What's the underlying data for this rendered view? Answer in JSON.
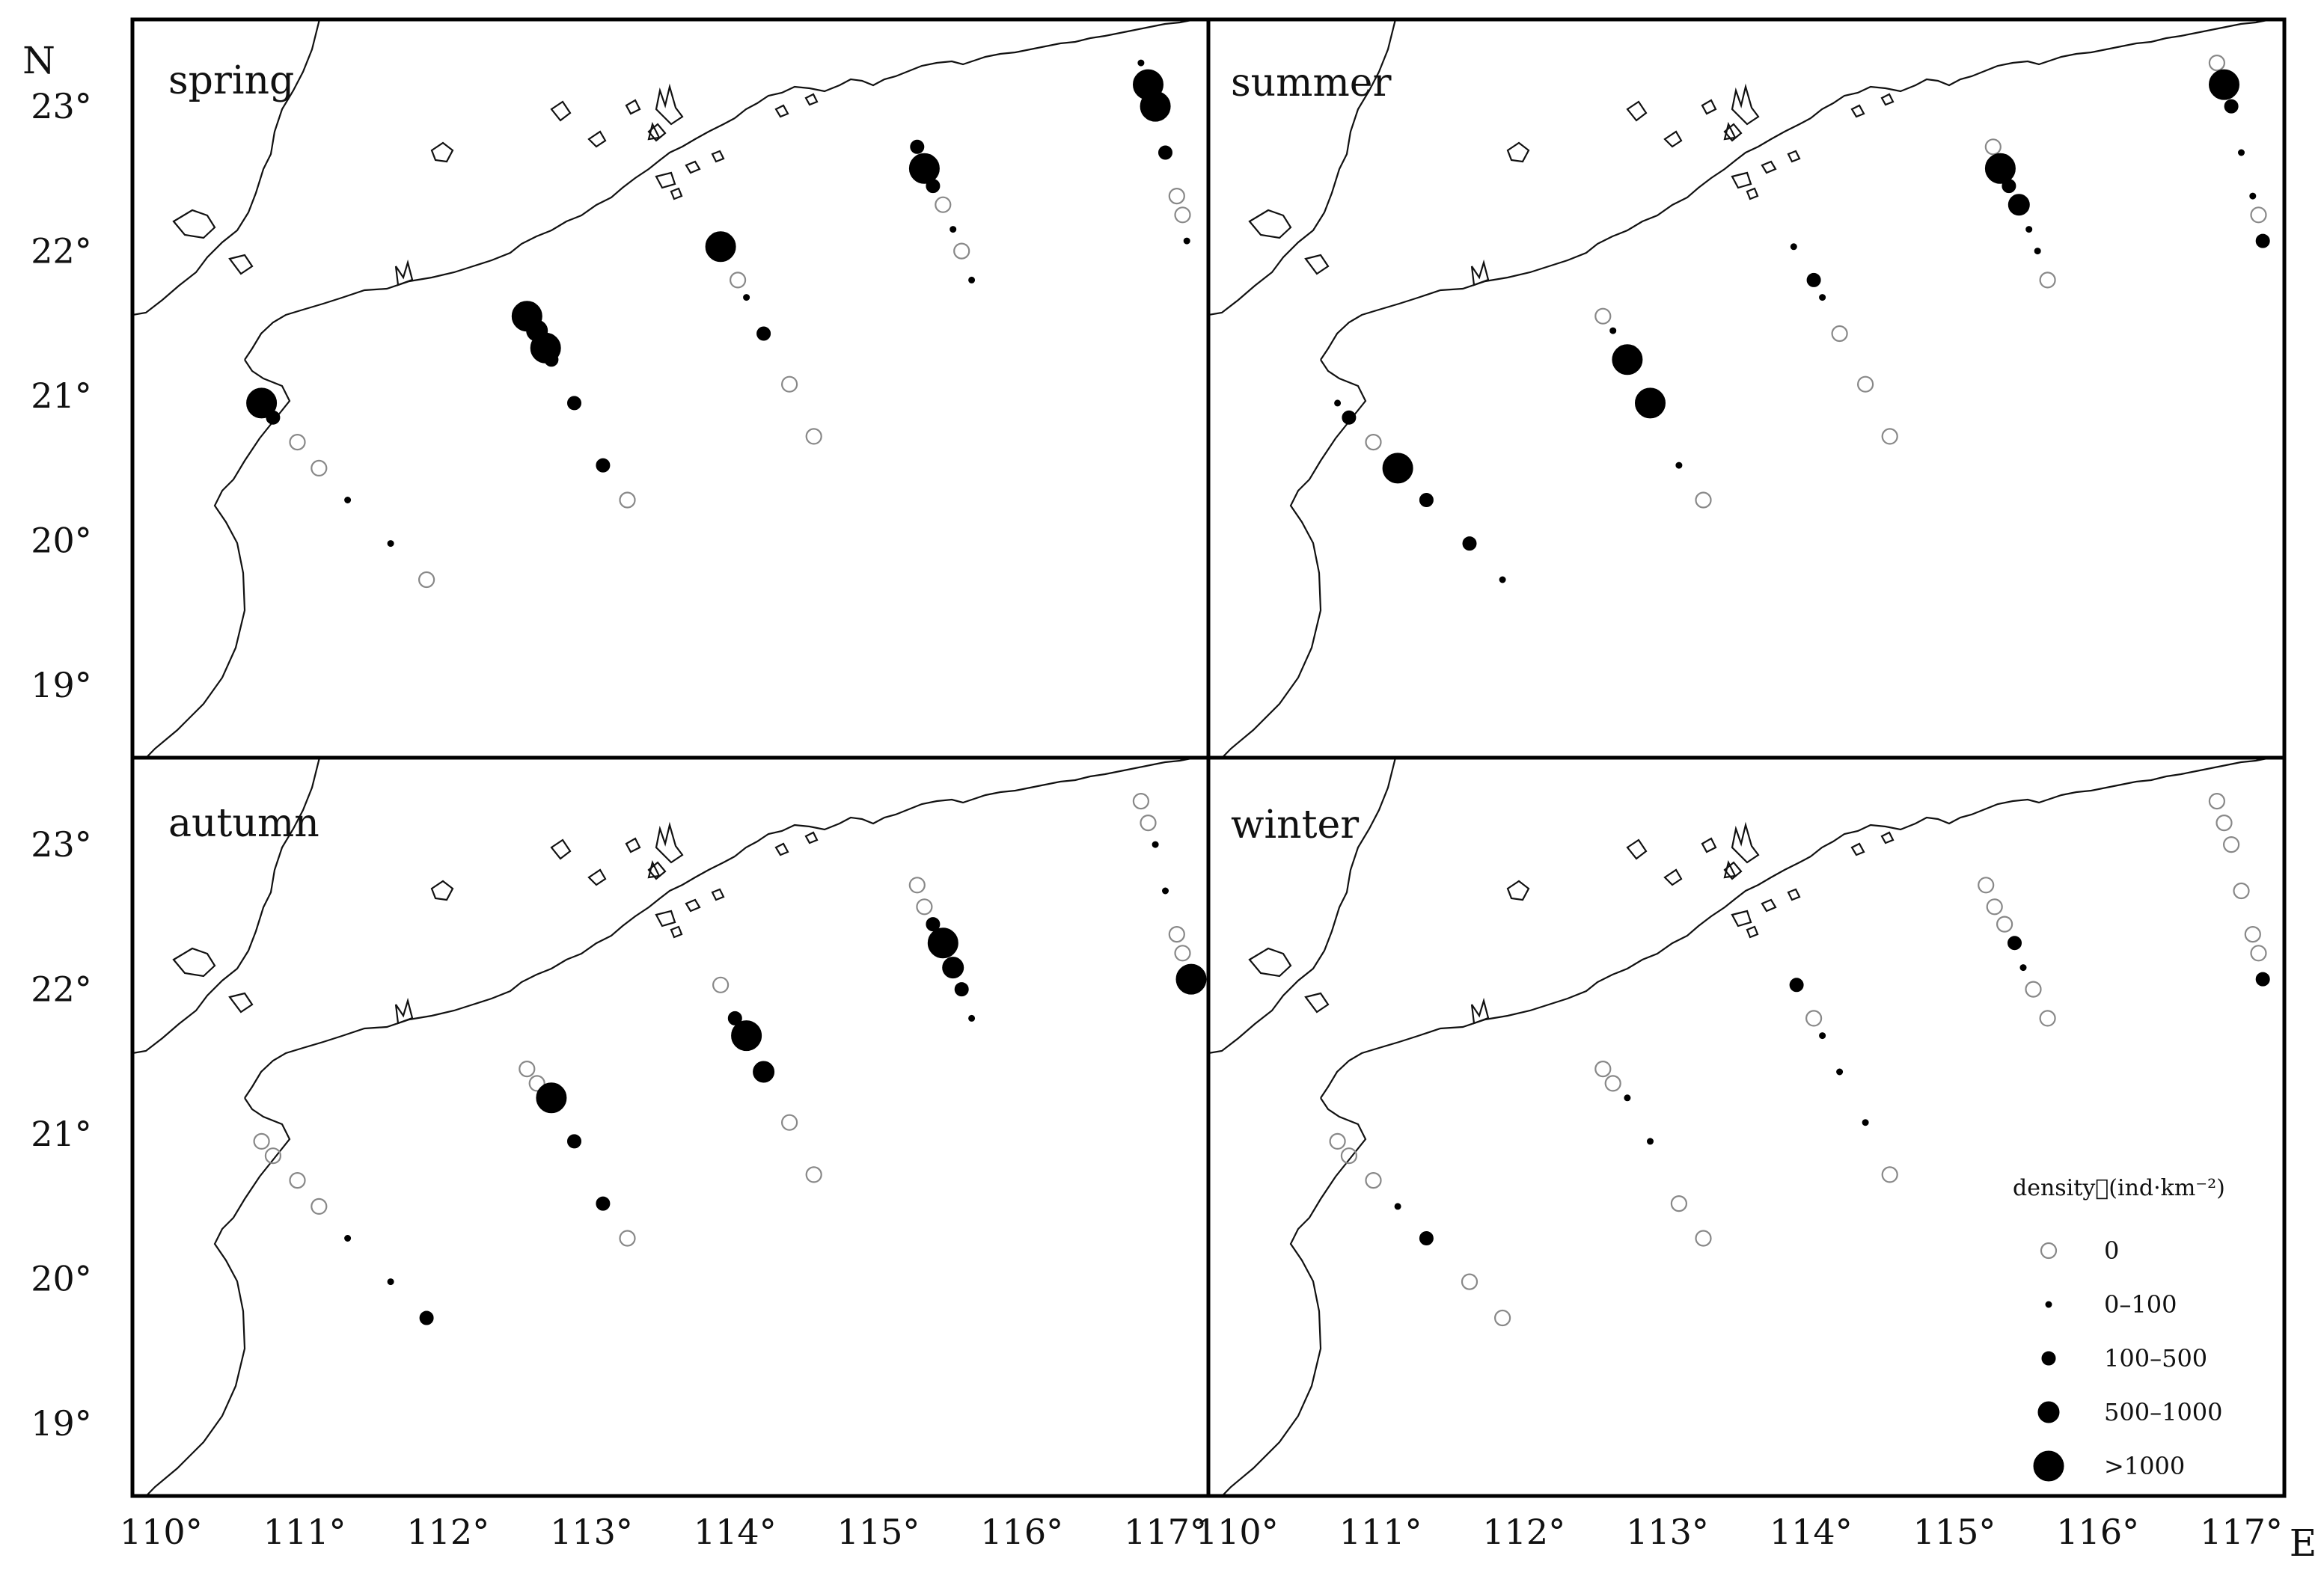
{
  "axes": {
    "x_letter": "E",
    "y_letter": "N",
    "lon_ticks": [
      "110°",
      "111°",
      "112°",
      "113°",
      "114°",
      "115°",
      "116°",
      "117°"
    ],
    "lat_ticks": [
      "23°",
      "22°",
      "21°",
      "20°",
      "19°"
    ],
    "lon_range": [
      109.8,
      117.3
    ],
    "lat_range": [
      18.5,
      23.6
    ]
  },
  "legend": {
    "title": "density\u0000(ind·km⁻²)",
    "classes": [
      {
        "label": "0",
        "symbol": "open-circle"
      },
      {
        "label": "0–100",
        "symbol": "tiny-dot"
      },
      {
        "label": "100–500",
        "symbol": "small-dot"
      },
      {
        "label": "500–1000",
        "symbol": "medium-dot"
      },
      {
        "label": ">1000",
        "symbol": "large-dot"
      }
    ]
  },
  "chart_data": {
    "type": "scatter",
    "value_classes": [
      "0",
      "0-100",
      "100-500",
      "500-1000",
      ">1000"
    ],
    "panels": [
      {
        "season": "spring",
        "points": [
          {
            "lon": 110.7,
            "lat": 20.95,
            "cls": 4
          },
          {
            "lon": 110.78,
            "lat": 20.85,
            "cls": 2
          },
          {
            "lon": 110.95,
            "lat": 20.68,
            "cls": 0
          },
          {
            "lon": 111.1,
            "lat": 20.5,
            "cls": 0
          },
          {
            "lon": 111.3,
            "lat": 20.28,
            "cls": 1
          },
          {
            "lon": 111.6,
            "lat": 19.98,
            "cls": 1
          },
          {
            "lon": 111.85,
            "lat": 19.73,
            "cls": 0
          },
          {
            "lon": 112.55,
            "lat": 21.55,
            "cls": 4
          },
          {
            "lon": 112.62,
            "lat": 21.45,
            "cls": 3
          },
          {
            "lon": 112.68,
            "lat": 21.33,
            "cls": 4
          },
          {
            "lon": 112.72,
            "lat": 21.25,
            "cls": 2
          },
          {
            "lon": 112.88,
            "lat": 20.95,
            "cls": 2
          },
          {
            "lon": 113.08,
            "lat": 20.52,
            "cls": 2
          },
          {
            "lon": 113.25,
            "lat": 20.28,
            "cls": 0
          },
          {
            "lon": 113.9,
            "lat": 22.03,
            "cls": 4
          },
          {
            "lon": 114.02,
            "lat": 21.8,
            "cls": 0
          },
          {
            "lon": 114.08,
            "lat": 21.68,
            "cls": 1
          },
          {
            "lon": 114.2,
            "lat": 21.43,
            "cls": 2
          },
          {
            "lon": 114.38,
            "lat": 21.08,
            "cls": 0
          },
          {
            "lon": 114.55,
            "lat": 20.72,
            "cls": 0
          },
          {
            "lon": 115.27,
            "lat": 22.72,
            "cls": 2
          },
          {
            "lon": 115.32,
            "lat": 22.57,
            "cls": 4
          },
          {
            "lon": 115.38,
            "lat": 22.45,
            "cls": 2
          },
          {
            "lon": 115.45,
            "lat": 22.32,
            "cls": 0
          },
          {
            "lon": 115.52,
            "lat": 22.15,
            "cls": 1
          },
          {
            "lon": 115.58,
            "lat": 22.0,
            "cls": 0
          },
          {
            "lon": 115.65,
            "lat": 21.8,
            "cls": 1
          },
          {
            "lon": 116.83,
            "lat": 23.3,
            "cls": 1
          },
          {
            "lon": 116.88,
            "lat": 23.15,
            "cls": 4
          },
          {
            "lon": 116.93,
            "lat": 23.0,
            "cls": 4
          },
          {
            "lon": 117.0,
            "lat": 22.68,
            "cls": 2
          },
          {
            "lon": 117.08,
            "lat": 22.38,
            "cls": 0
          },
          {
            "lon": 117.12,
            "lat": 22.25,
            "cls": 0
          },
          {
            "lon": 117.15,
            "lat": 22.07,
            "cls": 1
          }
        ]
      },
      {
        "season": "summer",
        "points": [
          {
            "lon": 110.7,
            "lat": 20.95,
            "cls": 1
          },
          {
            "lon": 110.78,
            "lat": 20.85,
            "cls": 2
          },
          {
            "lon": 110.95,
            "lat": 20.68,
            "cls": 0
          },
          {
            "lon": 111.12,
            "lat": 20.5,
            "cls": 4
          },
          {
            "lon": 111.32,
            "lat": 20.28,
            "cls": 2
          },
          {
            "lon": 111.62,
            "lat": 19.98,
            "cls": 2
          },
          {
            "lon": 111.85,
            "lat": 19.73,
            "cls": 1
          },
          {
            "lon": 112.55,
            "lat": 21.55,
            "cls": 0
          },
          {
            "lon": 112.62,
            "lat": 21.45,
            "cls": 1
          },
          {
            "lon": 112.72,
            "lat": 21.25,
            "cls": 4
          },
          {
            "lon": 112.88,
            "lat": 20.95,
            "cls": 4
          },
          {
            "lon": 113.08,
            "lat": 20.52,
            "cls": 1
          },
          {
            "lon": 113.25,
            "lat": 20.28,
            "cls": 0
          },
          {
            "lon": 113.88,
            "lat": 22.03,
            "cls": 1
          },
          {
            "lon": 114.02,
            "lat": 21.8,
            "cls": 2
          },
          {
            "lon": 114.08,
            "lat": 21.68,
            "cls": 1
          },
          {
            "lon": 114.2,
            "lat": 21.43,
            "cls": 0
          },
          {
            "lon": 114.38,
            "lat": 21.08,
            "cls": 0
          },
          {
            "lon": 114.55,
            "lat": 20.72,
            "cls": 0
          },
          {
            "lon": 115.27,
            "lat": 22.72,
            "cls": 0
          },
          {
            "lon": 115.32,
            "lat": 22.57,
            "cls": 4
          },
          {
            "lon": 115.38,
            "lat": 22.45,
            "cls": 2
          },
          {
            "lon": 115.45,
            "lat": 22.32,
            "cls": 3
          },
          {
            "lon": 115.52,
            "lat": 22.15,
            "cls": 1
          },
          {
            "lon": 115.58,
            "lat": 22.0,
            "cls": 1
          },
          {
            "lon": 115.65,
            "lat": 21.8,
            "cls": 0
          },
          {
            "lon": 116.83,
            "lat": 23.3,
            "cls": 0
          },
          {
            "lon": 116.88,
            "lat": 23.15,
            "cls": 4
          },
          {
            "lon": 116.93,
            "lat": 23.0,
            "cls": 2
          },
          {
            "lon": 117.0,
            "lat": 22.68,
            "cls": 1
          },
          {
            "lon": 117.08,
            "lat": 22.38,
            "cls": 1
          },
          {
            "lon": 117.12,
            "lat": 22.25,
            "cls": 0
          },
          {
            "lon": 117.15,
            "lat": 22.07,
            "cls": 2
          }
        ]
      },
      {
        "season": "autumn",
        "points": [
          {
            "lon": 110.7,
            "lat": 20.95,
            "cls": 0
          },
          {
            "lon": 110.78,
            "lat": 20.85,
            "cls": 0
          },
          {
            "lon": 110.95,
            "lat": 20.68,
            "cls": 0
          },
          {
            "lon": 111.1,
            "lat": 20.5,
            "cls": 0
          },
          {
            "lon": 111.3,
            "lat": 20.28,
            "cls": 1
          },
          {
            "lon": 111.6,
            "lat": 19.98,
            "cls": 1
          },
          {
            "lon": 111.85,
            "lat": 19.73,
            "cls": 2
          },
          {
            "lon": 112.55,
            "lat": 21.45,
            "cls": 0
          },
          {
            "lon": 112.62,
            "lat": 21.35,
            "cls": 0
          },
          {
            "lon": 112.72,
            "lat": 21.25,
            "cls": 4
          },
          {
            "lon": 112.88,
            "lat": 20.95,
            "cls": 2
          },
          {
            "lon": 113.08,
            "lat": 20.52,
            "cls": 2
          },
          {
            "lon": 113.25,
            "lat": 20.28,
            "cls": 0
          },
          {
            "lon": 113.9,
            "lat": 22.03,
            "cls": 0
          },
          {
            "lon": 114.0,
            "lat": 21.8,
            "cls": 2
          },
          {
            "lon": 114.08,
            "lat": 21.68,
            "cls": 4
          },
          {
            "lon": 114.2,
            "lat": 21.43,
            "cls": 3
          },
          {
            "lon": 114.38,
            "lat": 21.08,
            "cls": 0
          },
          {
            "lon": 114.55,
            "lat": 20.72,
            "cls": 0
          },
          {
            "lon": 115.27,
            "lat": 22.72,
            "cls": 0
          },
          {
            "lon": 115.32,
            "lat": 22.57,
            "cls": 0
          },
          {
            "lon": 115.38,
            "lat": 22.45,
            "cls": 2
          },
          {
            "lon": 115.45,
            "lat": 22.32,
            "cls": 4
          },
          {
            "lon": 115.52,
            "lat": 22.15,
            "cls": 3
          },
          {
            "lon": 115.58,
            "lat": 22.0,
            "cls": 2
          },
          {
            "lon": 115.65,
            "lat": 21.8,
            "cls": 1
          },
          {
            "lon": 116.83,
            "lat": 23.3,
            "cls": 0
          },
          {
            "lon": 116.88,
            "lat": 23.15,
            "cls": 0
          },
          {
            "lon": 116.93,
            "lat": 23.0,
            "cls": 1
          },
          {
            "lon": 117.0,
            "lat": 22.68,
            "cls": 1
          },
          {
            "lon": 117.08,
            "lat": 22.38,
            "cls": 0
          },
          {
            "lon": 117.12,
            "lat": 22.25,
            "cls": 0
          },
          {
            "lon": 117.18,
            "lat": 22.07,
            "cls": 4
          }
        ]
      },
      {
        "season": "winter",
        "points": [
          {
            "lon": 110.7,
            "lat": 20.95,
            "cls": 0
          },
          {
            "lon": 110.78,
            "lat": 20.85,
            "cls": 0
          },
          {
            "lon": 110.95,
            "lat": 20.68,
            "cls": 0
          },
          {
            "lon": 111.12,
            "lat": 20.5,
            "cls": 1
          },
          {
            "lon": 111.32,
            "lat": 20.28,
            "cls": 2
          },
          {
            "lon": 111.62,
            "lat": 19.98,
            "cls": 0
          },
          {
            "lon": 111.85,
            "lat": 19.73,
            "cls": 0
          },
          {
            "lon": 112.55,
            "lat": 21.45,
            "cls": 0
          },
          {
            "lon": 112.62,
            "lat": 21.35,
            "cls": 0
          },
          {
            "lon": 112.72,
            "lat": 21.25,
            "cls": 1
          },
          {
            "lon": 112.88,
            "lat": 20.95,
            "cls": 1
          },
          {
            "lon": 113.08,
            "lat": 20.52,
            "cls": 0
          },
          {
            "lon": 113.25,
            "lat": 20.28,
            "cls": 0
          },
          {
            "lon": 113.9,
            "lat": 22.03,
            "cls": 2
          },
          {
            "lon": 114.02,
            "lat": 21.8,
            "cls": 0
          },
          {
            "lon": 114.08,
            "lat": 21.68,
            "cls": 1
          },
          {
            "lon": 114.2,
            "lat": 21.43,
            "cls": 1
          },
          {
            "lon": 114.38,
            "lat": 21.08,
            "cls": 1
          },
          {
            "lon": 114.55,
            "lat": 20.72,
            "cls": 0
          },
          {
            "lon": 115.22,
            "lat": 22.72,
            "cls": 0
          },
          {
            "lon": 115.28,
            "lat": 22.57,
            "cls": 0
          },
          {
            "lon": 115.35,
            "lat": 22.45,
            "cls": 0
          },
          {
            "lon": 115.42,
            "lat": 22.32,
            "cls": 2
          },
          {
            "lon": 115.48,
            "lat": 22.15,
            "cls": 1
          },
          {
            "lon": 115.55,
            "lat": 22.0,
            "cls": 0
          },
          {
            "lon": 115.65,
            "lat": 21.8,
            "cls": 0
          },
          {
            "lon": 116.83,
            "lat": 23.3,
            "cls": 0
          },
          {
            "lon": 116.88,
            "lat": 23.15,
            "cls": 0
          },
          {
            "lon": 116.93,
            "lat": 23.0,
            "cls": 0
          },
          {
            "lon": 117.0,
            "lat": 22.68,
            "cls": 0
          },
          {
            "lon": 117.08,
            "lat": 22.38,
            "cls": 0
          },
          {
            "lon": 117.12,
            "lat": 22.25,
            "cls": 0
          },
          {
            "lon": 117.15,
            "lat": 22.07,
            "cls": 2
          }
        ]
      }
    ]
  }
}
